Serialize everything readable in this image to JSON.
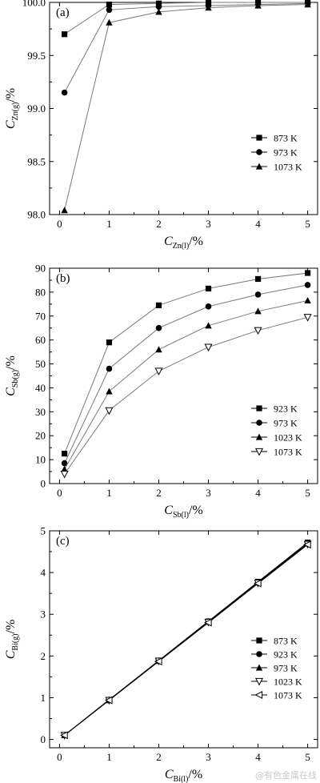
{
  "watermark": "@有色金属在线",
  "chart_data": [
    {
      "type": "line",
      "panel_label": "(a)",
      "ylabel": {
        "main": "C",
        "sub": "Zn(g)",
        "unit": "/%"
      },
      "xlabel": {
        "main": "C",
        "sub": "Zn(l)",
        "unit": "/%"
      },
      "xlim": [
        -0.2,
        5.2
      ],
      "ylim": [
        98.0,
        100.0
      ],
      "xticks": [
        0,
        1,
        2,
        3,
        4,
        5
      ],
      "yticks": [
        98.0,
        98.5,
        99.0,
        99.5,
        100.0
      ],
      "ytick_labels": [
        "98.0",
        "98.5",
        "99.0",
        "99.5",
        "100.0"
      ],
      "grid": false,
      "legend_position": "right",
      "x": [
        0.1,
        1,
        2,
        3,
        4,
        5
      ],
      "series": [
        {
          "name": "873 K",
          "marker": "square",
          "values": [
            99.7,
            99.98,
            99.99,
            100.0,
            100.0,
            100.0
          ]
        },
        {
          "name": "973 K",
          "marker": "circle",
          "values": [
            99.15,
            99.93,
            99.96,
            99.97,
            99.98,
            99.99
          ]
        },
        {
          "name": "1073 K",
          "marker": "triangle",
          "values": [
            98.04,
            99.81,
            99.91,
            99.95,
            99.97,
            99.98
          ]
        }
      ]
    },
    {
      "type": "line",
      "panel_label": "(b)",
      "ylabel": {
        "main": "C",
        "sub": "Sb(g)",
        "unit": "/%"
      },
      "xlabel": {
        "main": "C",
        "sub": "Sb(l)",
        "unit": "/%"
      },
      "xlim": [
        -0.2,
        5.2
      ],
      "ylim": [
        0,
        90
      ],
      "xticks": [
        0,
        1,
        2,
        3,
        4,
        5
      ],
      "yticks": [
        0,
        10,
        20,
        30,
        40,
        50,
        60,
        70,
        80,
        90
      ],
      "ytick_labels": [
        "0",
        "10",
        "20",
        "30",
        "40",
        "50",
        "60",
        "70",
        "80",
        "90"
      ],
      "grid": false,
      "legend_position": "right",
      "x": [
        0.1,
        1,
        2,
        3,
        4,
        5
      ],
      "series": [
        {
          "name": "923 K",
          "marker": "square",
          "values": [
            12.5,
            59.0,
            74.5,
            81.5,
            85.5,
            88.0
          ]
        },
        {
          "name": "973 K",
          "marker": "circle",
          "values": [
            8.5,
            48.0,
            65.0,
            74.0,
            79.0,
            83.0
          ]
        },
        {
          "name": "1023 K",
          "marker": "triangle",
          "values": [
            6.0,
            38.5,
            56.0,
            66.0,
            72.0,
            76.5
          ]
        },
        {
          "name": "1073 K",
          "marker": "triangle-down",
          "values": [
            4.0,
            30.5,
            47.0,
            57.0,
            64.0,
            69.5
          ]
        }
      ]
    },
    {
      "type": "line",
      "panel_label": "(c)",
      "ylabel": {
        "main": "C",
        "sub": "Bi(g)",
        "unit": "/%"
      },
      "xlabel": {
        "main": "C",
        "sub": "Bi(l)",
        "unit": "/%"
      },
      "xlim": [
        -0.2,
        5.2
      ],
      "ylim": [
        -0.2,
        5
      ],
      "xticks": [
        0,
        1,
        2,
        3,
        4,
        5
      ],
      "yticks": [
        0,
        1,
        2,
        3,
        4,
        5
      ],
      "ytick_labels": [
        "0",
        "1",
        "2",
        "3",
        "4",
        "5"
      ],
      "grid": false,
      "legend_position": "right",
      "x": [
        0.1,
        1,
        2,
        3,
        4,
        5
      ],
      "series": [
        {
          "name": "873 K",
          "marker": "square",
          "values": [
            0.1,
            0.95,
            1.89,
            2.83,
            3.78,
            4.72
          ]
        },
        {
          "name": "923 K",
          "marker": "circle",
          "values": [
            0.1,
            0.95,
            1.89,
            2.83,
            3.77,
            4.71
          ]
        },
        {
          "name": "973 K",
          "marker": "triangle",
          "values": [
            0.1,
            0.94,
            1.88,
            2.82,
            3.76,
            4.7
          ]
        },
        {
          "name": "1023 K",
          "marker": "triangle-down",
          "values": [
            0.1,
            0.94,
            1.88,
            2.81,
            3.75,
            4.68
          ]
        },
        {
          "name": "1073 K",
          "marker": "triangle-left-open",
          "values": [
            0.1,
            0.94,
            1.87,
            2.8,
            3.74,
            4.67
          ]
        }
      ]
    }
  ]
}
